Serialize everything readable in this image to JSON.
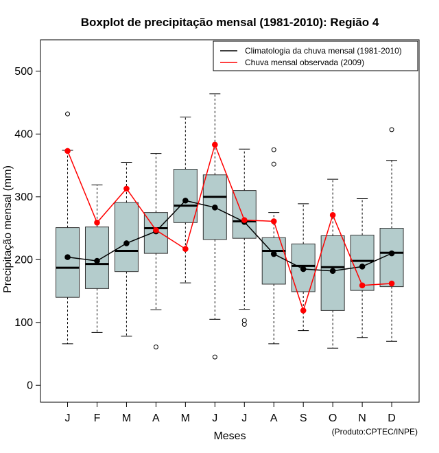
{
  "chart_data": {
    "type": "boxplot",
    "title": "Boxplot de precipitação mensal (1981-2010): Região 4",
    "xlabel": "Meses",
    "ylabel": "Precipitação mensal (mm)",
    "ylim": [
      -27,
      550
    ],
    "yticks": [
      0,
      100,
      200,
      300,
      400,
      500
    ],
    "categories": [
      "J",
      "F",
      "M",
      "A",
      "M",
      "J",
      "J",
      "A",
      "S",
      "O",
      "N",
      "D"
    ],
    "boxes": [
      {
        "whisker_low": 66,
        "q1": 140,
        "median": 187,
        "q3": 251,
        "whisker_high": 374,
        "outliers": [
          432
        ]
      },
      {
        "whisker_low": 84,
        "q1": 154,
        "median": 193,
        "q3": 252,
        "whisker_high": 319,
        "outliers": []
      },
      {
        "whisker_low": 78,
        "q1": 181,
        "median": 214,
        "q3": 291,
        "whisker_high": 355,
        "outliers": []
      },
      {
        "whisker_low": 120,
        "q1": 210,
        "median": 250,
        "q3": 275,
        "whisker_high": 369,
        "outliers": [
          61
        ]
      },
      {
        "whisker_low": 163,
        "q1": 259,
        "median": 286,
        "q3": 344,
        "whisker_high": 427,
        "outliers": []
      },
      {
        "whisker_low": 105,
        "q1": 232,
        "median": 300,
        "q3": 335,
        "whisker_high": 464,
        "outliers": [
          45
        ]
      },
      {
        "whisker_low": 121,
        "q1": 234,
        "median": 261,
        "q3": 310,
        "whisker_high": 376,
        "outliers": [
          97,
          103
        ]
      },
      {
        "whisker_low": 66,
        "q1": 161,
        "median": 214,
        "q3": 235,
        "whisker_high": 275,
        "outliers": [
          352,
          375
        ]
      },
      {
        "whisker_low": 87,
        "q1": 149,
        "median": 190,
        "q3": 225,
        "whisker_high": 289,
        "outliers": []
      },
      {
        "whisker_low": 59,
        "q1": 119,
        "median": 188,
        "q3": 238,
        "whisker_high": 328,
        "outliers": []
      },
      {
        "whisker_low": 76,
        "q1": 151,
        "median": 198,
        "q3": 239,
        "whisker_high": 297,
        "outliers": []
      },
      {
        "whisker_low": 70,
        "q1": 157,
        "median": 211,
        "q3": 250,
        "whisker_high": 358,
        "outliers": [
          407
        ]
      }
    ],
    "series": [
      {
        "name": "Climatologia da chuva mensal (1981-2010)",
        "color": "#000000",
        "values": [
          204,
          198,
          226,
          245,
          294,
          283,
          260,
          209,
          185,
          182,
          189,
          210
        ]
      },
      {
        "name": "Chuva mensal observada (2009)",
        "color": "#ff0000",
        "values": [
          373,
          259,
          313,
          247,
          217,
          383,
          263,
          261,
          119,
          271,
          159,
          162
        ]
      }
    ],
    "box_fill": "#b4cccc",
    "legend_position": "top-right",
    "credit": "(Produto:CPTEC/INPE)"
  }
}
